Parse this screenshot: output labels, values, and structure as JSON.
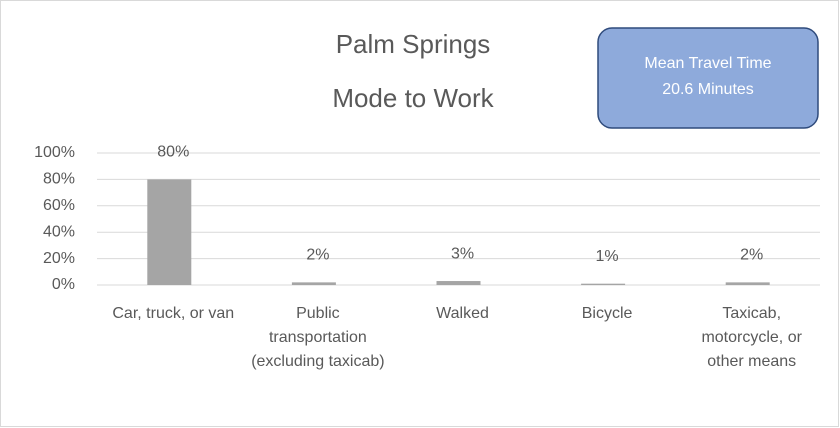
{
  "chart_data": {
    "type": "bar",
    "title": [
      "Palm Springs",
      "Mode to Work"
    ],
    "annotation": [
      "Mean Travel Time",
      "20.6 Minutes"
    ],
    "categories": [
      "Car, truck, or van",
      "Public transportation (excluding taxicab)",
      "Walked",
      "Bicycle",
      "Taxicab, motorcycle, or other means"
    ],
    "values": [
      80,
      2,
      3,
      1,
      2
    ],
    "value_labels": [
      "80%",
      "2%",
      "3%",
      "1%",
      "2%"
    ],
    "color": "#a5a5a5",
    "ylim": [
      0,
      100
    ],
    "yticks": [
      {
        "value": 0,
        "label": "0%"
      },
      {
        "value": 20,
        "label": "20%"
      },
      {
        "value": 40,
        "label": "40%"
      },
      {
        "value": 60,
        "label": "60%"
      },
      {
        "value": 80,
        "label": "80%"
      },
      {
        "value": 100,
        "label": "100%"
      }
    ],
    "grid": true
  }
}
